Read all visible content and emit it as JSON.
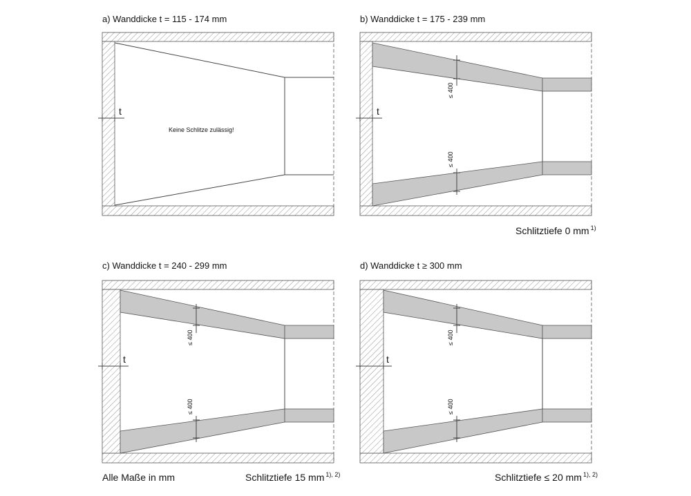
{
  "panels": [
    {
      "id": "a",
      "title": "a)  Wanddicke  t = 115 - 174 mm",
      "t_label": "t",
      "note": "Keine Schlitze zulässig!"
    },
    {
      "id": "b",
      "title": "b)  Wanddicke  t = 175 - 239 mm",
      "t_label": "t",
      "dim_top": "≤ 400",
      "dim_bottom": "≤ 400",
      "caption": "Schlitztiefe 0 mm",
      "caption_sup": "1)"
    },
    {
      "id": "c",
      "title": "c)  Wanddicke  t = 240 - 299 mm",
      "t_label": "t",
      "dim_top": "≤ 400",
      "dim_bottom": "≤ 400",
      "caption": "Schlitztiefe 15 mm",
      "caption_sup": "1), 2)"
    },
    {
      "id": "d",
      "title": "d)  Wanddicke  t ≥ 300 mm",
      "t_label": "t",
      "dim_top": "≤ 400",
      "dim_bottom": "≤ 400",
      "caption": "Schlitztiefe ≤ 20 mm",
      "caption_sup": "1), 2)"
    }
  ],
  "footer_left": "Alle Maße in mm"
}
